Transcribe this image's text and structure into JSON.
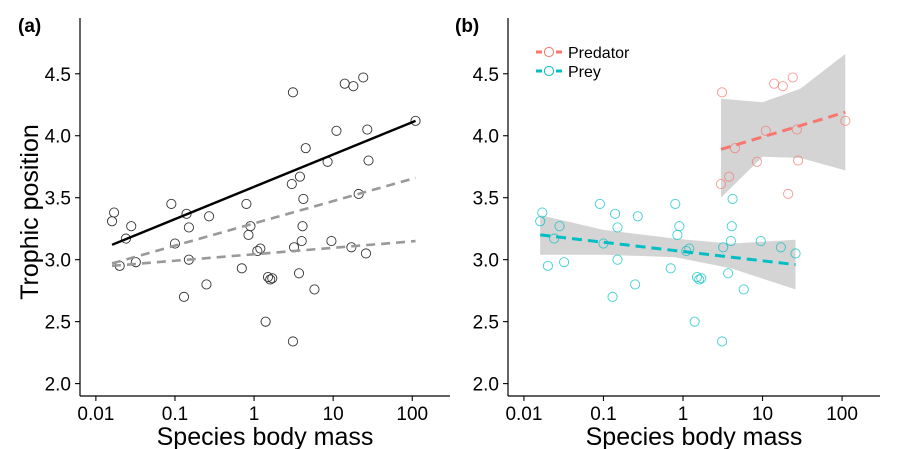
{
  "chart_data": [
    {
      "type": "scatter",
      "panel_label": "(a)",
      "xlabel": "Species body mass",
      "ylabel": "Trophic position",
      "x_scale": "log",
      "xlim": [
        0.0063,
        300
      ],
      "ylim": [
        1.9,
        4.95
      ],
      "x_ticks": [
        0.01,
        0.1,
        1,
        10,
        100
      ],
      "x_tick_labels": [
        "0.01",
        "0.1",
        "1",
        "10",
        "100"
      ],
      "y_ticks": [
        2.0,
        2.5,
        3.0,
        3.5,
        4.0,
        4.5
      ],
      "y_tick_labels": [
        "2.0",
        "2.5",
        "3.0",
        "3.5",
        "4.0",
        "4.5"
      ],
      "grid": false,
      "legend": "none",
      "points": [
        [
          0.016,
          3.31
        ],
        [
          0.017,
          3.38
        ],
        [
          0.02,
          2.95
        ],
        [
          0.024,
          3.17
        ],
        [
          0.028,
          3.27
        ],
        [
          0.032,
          2.98
        ],
        [
          0.09,
          3.45
        ],
        [
          0.1,
          3.13
        ],
        [
          0.13,
          2.7
        ],
        [
          0.14,
          3.37
        ],
        [
          0.15,
          3.0
        ],
        [
          0.15,
          3.26
        ],
        [
          0.25,
          2.8
        ],
        [
          0.27,
          3.35
        ],
        [
          0.7,
          2.93
        ],
        [
          0.8,
          3.45
        ],
        [
          0.85,
          3.2
        ],
        [
          0.9,
          3.27
        ],
        [
          1.1,
          3.07
        ],
        [
          1.2,
          3.09
        ],
        [
          1.4,
          2.5
        ],
        [
          1.5,
          2.86
        ],
        [
          1.6,
          2.84
        ],
        [
          1.7,
          2.85
        ],
        [
          3.0,
          3.61
        ],
        [
          3.1,
          4.35
        ],
        [
          3.1,
          2.34
        ],
        [
          3.2,
          3.1
        ],
        [
          3.7,
          2.89
        ],
        [
          3.8,
          3.67
        ],
        [
          4.0,
          3.15
        ],
        [
          4.1,
          3.27
        ],
        [
          4.2,
          3.49
        ],
        [
          4.5,
          3.9
        ],
        [
          5.8,
          2.76
        ],
        [
          8.5,
          3.79
        ],
        [
          9.5,
          3.15
        ],
        [
          11,
          4.04
        ],
        [
          14,
          4.42
        ],
        [
          17,
          3.1
        ],
        [
          18,
          4.4
        ],
        [
          21,
          3.53
        ],
        [
          24,
          4.47
        ],
        [
          26,
          3.05
        ],
        [
          27,
          4.05
        ],
        [
          28,
          3.8
        ],
        [
          110,
          4.12
        ]
      ],
      "lines": [
        {
          "style": "solid",
          "color": "#000000",
          "x": [
            0.016,
            110
          ],
          "y": [
            3.12,
            4.12
          ]
        },
        {
          "style": "dashed",
          "color": "#999999",
          "x": [
            0.016,
            110
          ],
          "y": [
            2.97,
            3.66
          ]
        },
        {
          "style": "dashed",
          "color": "#999999",
          "x": [
            0.016,
            110
          ],
          "y": [
            2.95,
            3.15
          ]
        }
      ],
      "point_color": "#333333"
    },
    {
      "type": "scatter",
      "panel_label": "(b)",
      "xlabel": "Species body mass",
      "ylabel": "",
      "x_scale": "log",
      "xlim": [
        0.0063,
        300
      ],
      "ylim": [
        1.9,
        4.95
      ],
      "x_ticks": [
        0.01,
        0.1,
        1,
        10,
        100
      ],
      "x_tick_labels": [
        "0.01",
        "0.1",
        "1",
        "10",
        "100"
      ],
      "y_ticks": [
        2.0,
        2.5,
        3.0,
        3.5,
        4.0,
        4.5
      ],
      "y_tick_labels": [
        "2.0",
        "2.5",
        "3.0",
        "3.5",
        "4.0",
        "4.5"
      ],
      "grid": false,
      "legend": "top-left",
      "series": [
        {
          "name": "Predator",
          "color": "#F8766D",
          "points": [
            [
              3.0,
              3.61
            ],
            [
              3.1,
              4.35
            ],
            [
              3.8,
              3.67
            ],
            [
              4.5,
              3.9
            ],
            [
              8.5,
              3.79
            ],
            [
              11,
              4.04
            ],
            [
              14,
              4.42
            ],
            [
              18,
              4.4
            ],
            [
              21,
              3.53
            ],
            [
              24,
              4.47
            ],
            [
              27,
              4.05
            ],
            [
              28,
              3.8
            ],
            [
              110,
              4.12
            ]
          ],
          "trend": {
            "x": [
              3.0,
              110
            ],
            "y": [
              3.89,
              4.19
            ]
          },
          "ribbon": {
            "x": [
              3.0,
              10,
              30,
              110
            ],
            "upper": [
              4.3,
              4.27,
              4.38,
              4.66
            ],
            "lower": [
              3.5,
              3.83,
              3.82,
              3.72
            ]
          }
        },
        {
          "name": "Prey",
          "color": "#00BFC4",
          "points": [
            [
              0.016,
              3.31
            ],
            [
              0.017,
              3.38
            ],
            [
              0.02,
              2.95
            ],
            [
              0.024,
              3.17
            ],
            [
              0.028,
              3.27
            ],
            [
              0.032,
              2.98
            ],
            [
              0.09,
              3.45
            ],
            [
              0.1,
              3.13
            ],
            [
              0.13,
              2.7
            ],
            [
              0.14,
              3.37
            ],
            [
              0.15,
              3.0
            ],
            [
              0.15,
              3.26
            ],
            [
              0.25,
              2.8
            ],
            [
              0.27,
              3.35
            ],
            [
              0.7,
              2.93
            ],
            [
              0.8,
              3.45
            ],
            [
              0.85,
              3.2
            ],
            [
              0.9,
              3.27
            ],
            [
              1.1,
              3.07
            ],
            [
              1.2,
              3.09
            ],
            [
              1.4,
              2.5
            ],
            [
              1.5,
              2.86
            ],
            [
              1.6,
              2.84
            ],
            [
              1.7,
              2.85
            ],
            [
              3.1,
              2.34
            ],
            [
              3.2,
              3.1
            ],
            [
              3.7,
              2.89
            ],
            [
              4.0,
              3.15
            ],
            [
              4.1,
              3.27
            ],
            [
              4.2,
              3.49
            ],
            [
              5.8,
              2.76
            ],
            [
              9.5,
              3.15
            ],
            [
              17,
              3.1
            ],
            [
              26,
              3.05
            ]
          ],
          "trend": {
            "x": [
              0.016,
              26
            ],
            "y": [
              3.2,
              2.96
            ]
          },
          "ribbon": {
            "x": [
              0.016,
              0.1,
              0.8,
              4,
              26
            ],
            "upper": [
              3.36,
              3.24,
              3.17,
              3.13,
              3.16
            ],
            "lower": [
              3.04,
              3.04,
              3.02,
              2.93,
              2.76
            ]
          }
        }
      ]
    }
  ]
}
